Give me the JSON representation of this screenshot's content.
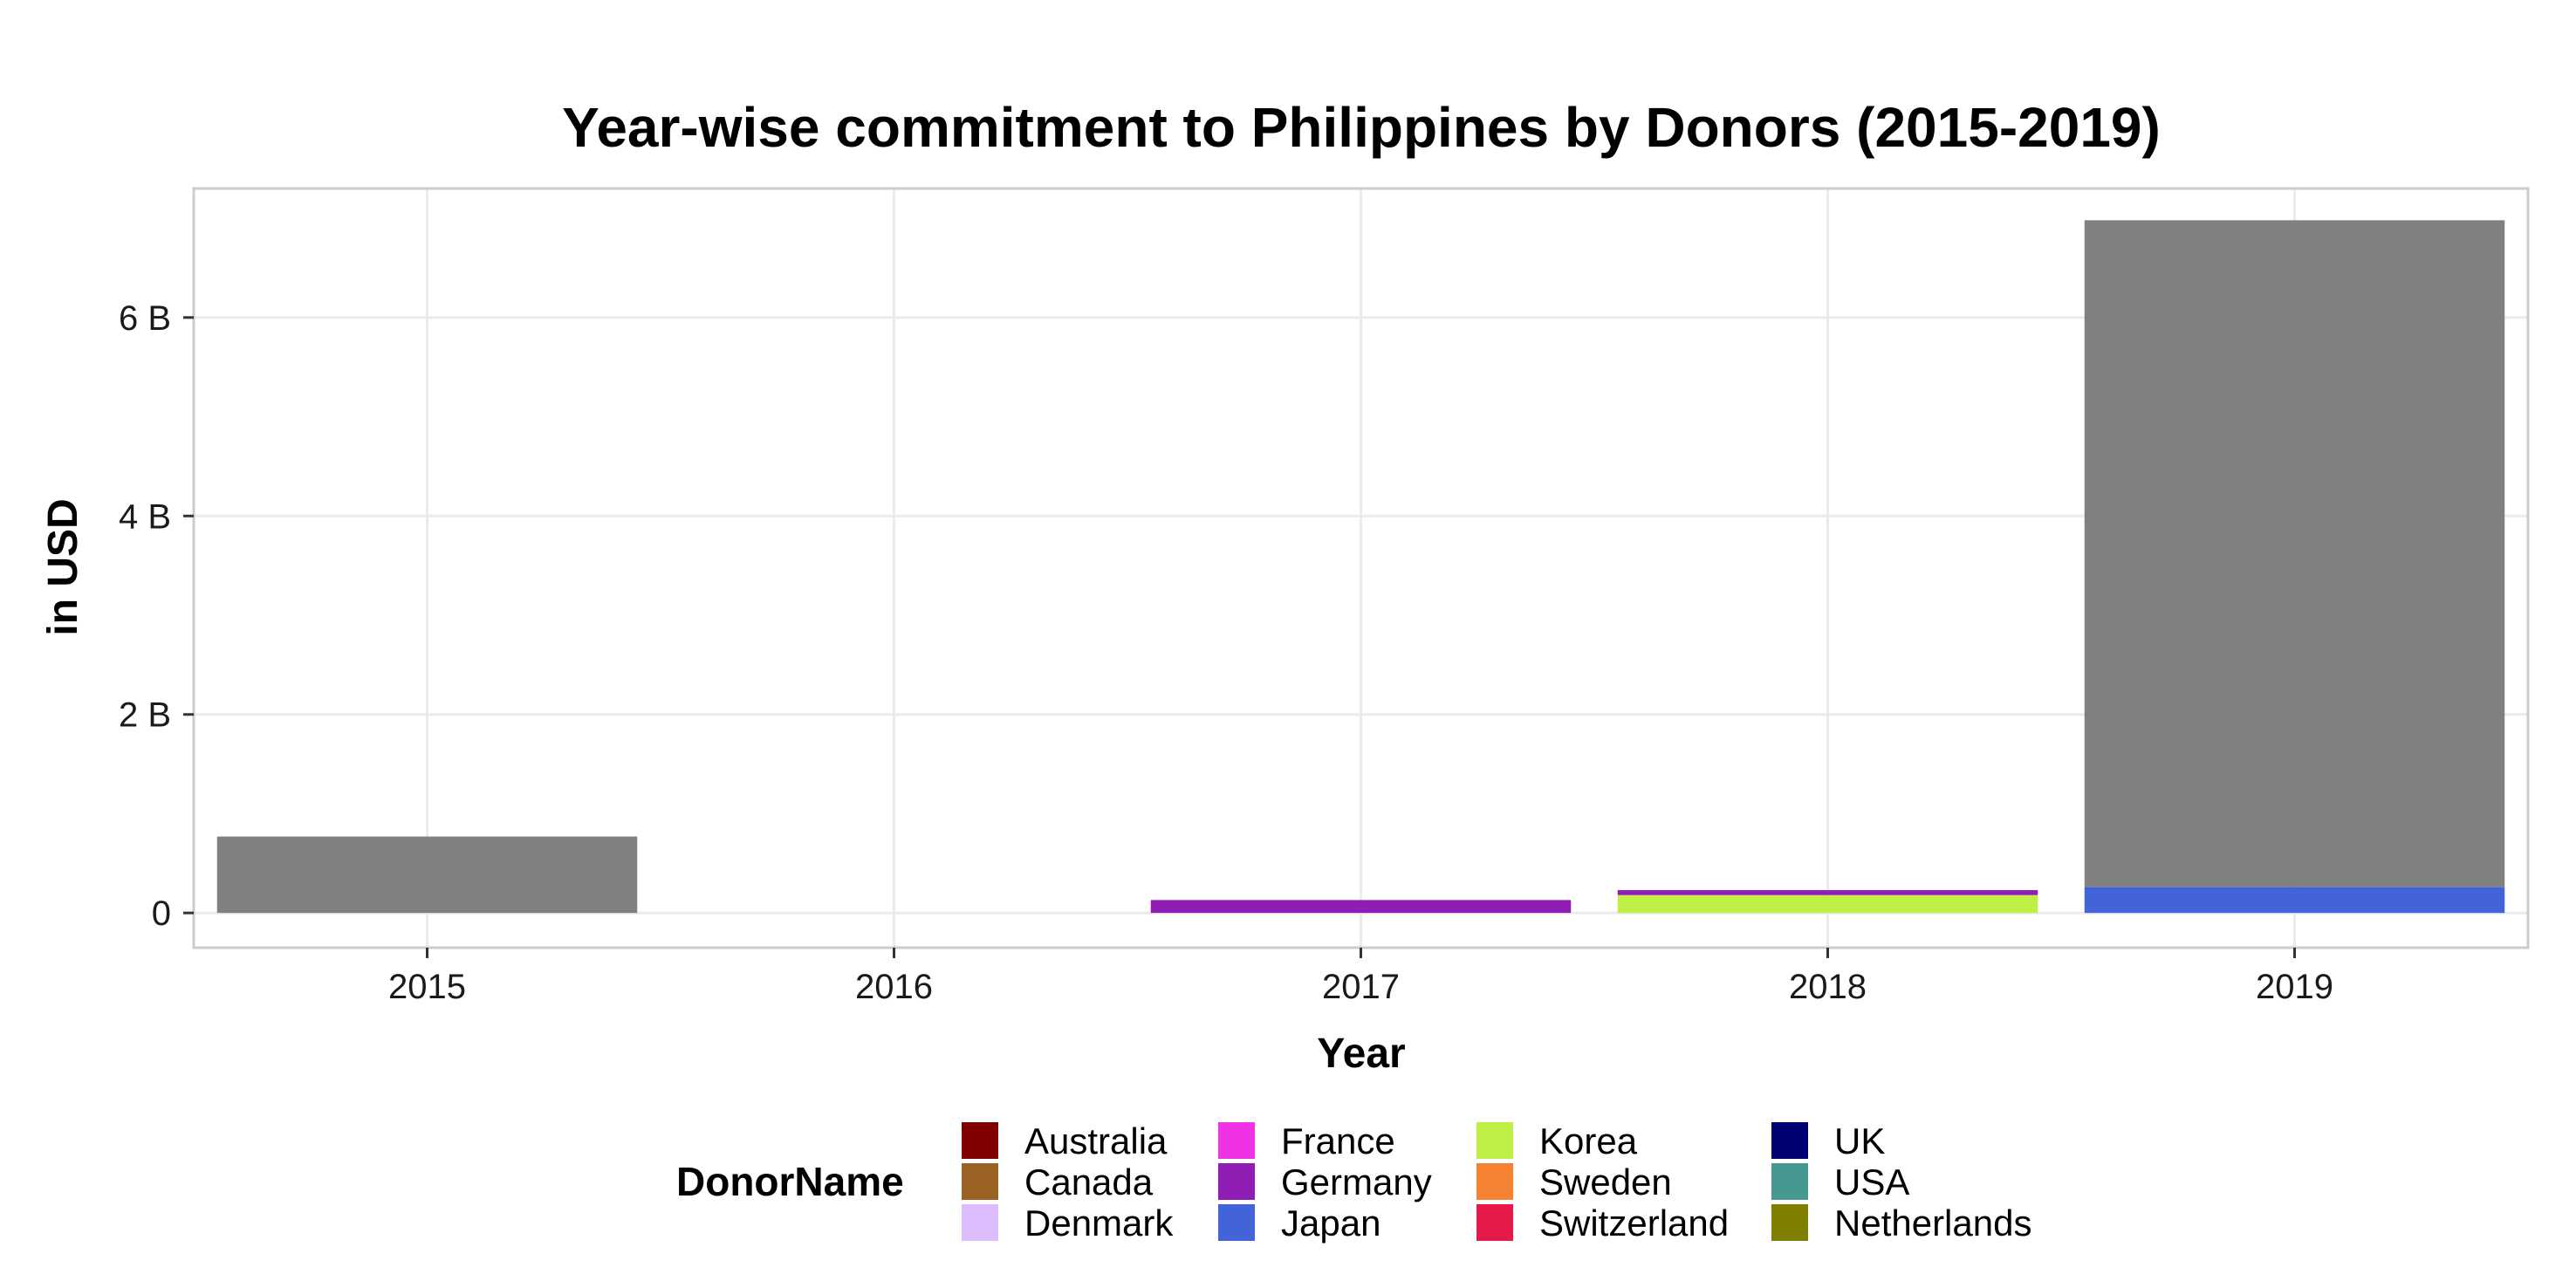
{
  "chart_data": {
    "type": "bar",
    "stacked": true,
    "title": "Year-wise commitment to Philippines by Donors (2015-2019)",
    "xlabel": "Year",
    "ylabel": "in USD",
    "categories": [
      "2015",
      "2016",
      "2017",
      "2018",
      "2019"
    ],
    "ylim": [
      -0.35,
      7.3
    ],
    "y_unit": "billion USD",
    "y_ticks": [
      0,
      2,
      4,
      6
    ],
    "y_tick_labels": [
      "0",
      "2 B",
      "4 B",
      "6 B"
    ],
    "grid": true,
    "legend": {
      "title": "DonorName",
      "position": "bottom",
      "columns": [
        [
          "Australia",
          "Canada",
          "Denmark"
        ],
        [
          "France",
          "Germany",
          "Japan"
        ],
        [
          "Korea",
          "Sweden",
          "Switzerland"
        ],
        [
          "UK",
          "USA",
          "Netherlands"
        ]
      ]
    },
    "colors": {
      "Australia": "#800000",
      "Canada": "#9A6324",
      "Denmark": "#DCBEFF",
      "France": "#F032E6",
      "Germany": "#911EB4",
      "Japan": "#4363D8",
      "Korea": "#BFEF45",
      "Sweden": "#F58231",
      "Switzerland": "#E6194B",
      "UK": "#000075",
      "USA": "#469990",
      "Netherlands": "#808000",
      "Other": "#808080"
    },
    "series": [
      {
        "name": "Korea",
        "values": [
          0,
          0,
          0,
          0.18,
          0
        ]
      },
      {
        "name": "Germany",
        "values": [
          0,
          0,
          0.13,
          0.05,
          0
        ]
      },
      {
        "name": "Japan",
        "values": [
          0,
          0,
          0,
          0,
          0.26
        ]
      },
      {
        "series_color": "#808080",
        "values": [
          0.77,
          0,
          0,
          0,
          6.72
        ]
      }
    ]
  }
}
